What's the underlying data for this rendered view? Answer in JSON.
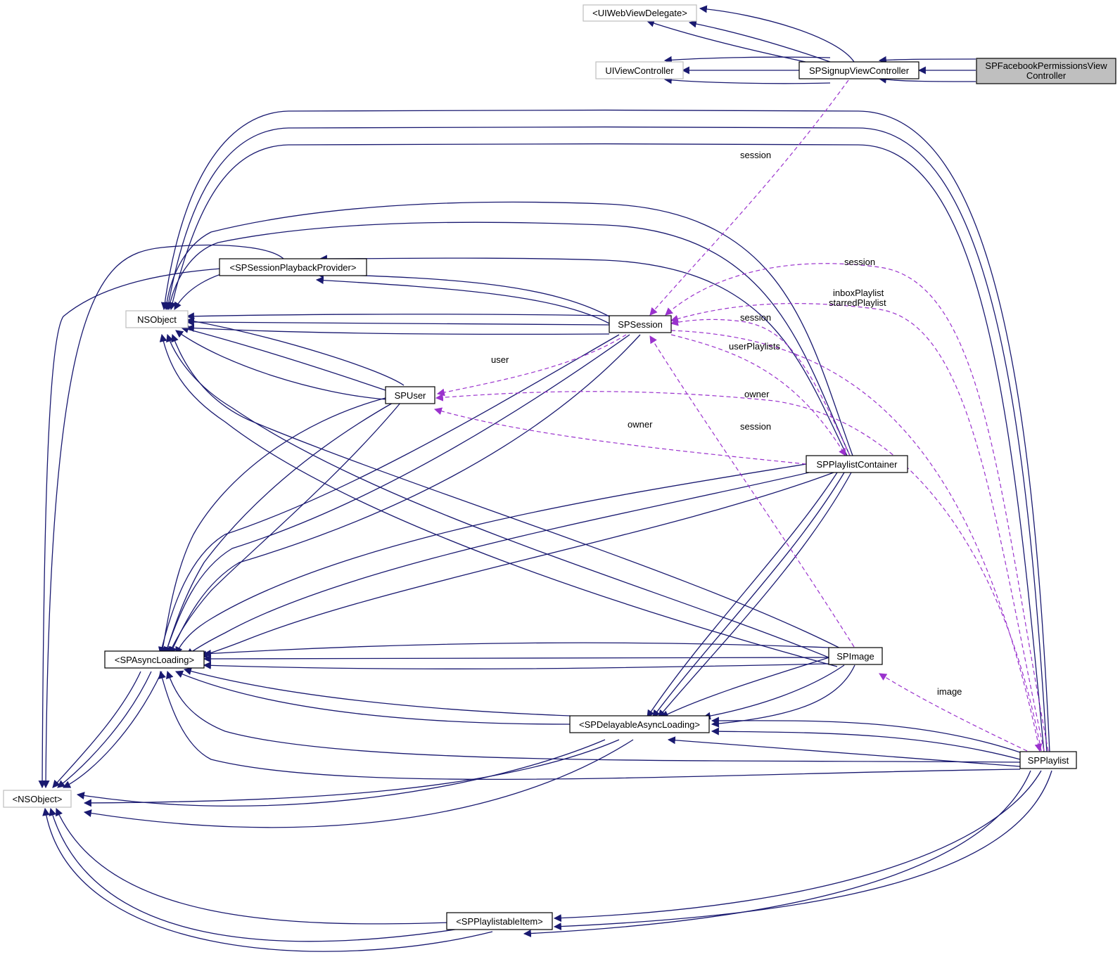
{
  "colors": {
    "inheritance": "#191970",
    "usage": "#9a32cd",
    "normal_border": "#000000",
    "external_border": "#bfbfbf",
    "focus_fill": "#bfbfbf",
    "node_fill": "#ffffff"
  },
  "nodes": [
    {
      "id": "uiwebviewdelegate",
      "label": "<UIWebViewDelegate>",
      "style": "external"
    },
    {
      "id": "uiviewcontroller",
      "label": "UIViewController",
      "style": "external"
    },
    {
      "id": "spsignup",
      "label": "SPSignupViewController",
      "style": "normal"
    },
    {
      "id": "spfacebook",
      "label": [
        "SPFacebookPermissionsView",
        "Controller"
      ],
      "style": "focus"
    },
    {
      "id": "spsessionplayback",
      "label": "<SPSessionPlaybackProvider>",
      "style": "normal"
    },
    {
      "id": "nsobject_class",
      "label": "NSObject",
      "style": "external"
    },
    {
      "id": "spsession",
      "label": "SPSession",
      "style": "normal"
    },
    {
      "id": "spuser",
      "label": "SPUser",
      "style": "normal"
    },
    {
      "id": "spplaylistcontainer",
      "label": "SPPlaylistContainer",
      "style": "normal"
    },
    {
      "id": "spasync",
      "label": "<SPAsyncLoading>",
      "style": "normal"
    },
    {
      "id": "spimage",
      "label": "SPImage",
      "style": "normal"
    },
    {
      "id": "spdelayable",
      "label": "<SPDelayableAsyncLoading>",
      "style": "normal"
    },
    {
      "id": "spplaylist",
      "label": "SPPlaylist",
      "style": "normal"
    },
    {
      "id": "nsobject_proto",
      "label": "<NSObject>",
      "style": "external"
    },
    {
      "id": "spplaylistable",
      "label": "<SPPlaylistableItem>",
      "style": "normal"
    }
  ],
  "edge_labels": [
    {
      "id": "lbl-session-signup",
      "text": "session"
    },
    {
      "id": "lbl-session-playlist",
      "text": "session"
    },
    {
      "id": "lbl-inbox",
      "text": "inboxPlaylist"
    },
    {
      "id": "lbl-starred",
      "text": "starredPlaylist"
    },
    {
      "id": "lbl-session-container",
      "text": "session"
    },
    {
      "id": "lbl-userplaylists",
      "text": "userPlaylists"
    },
    {
      "id": "lbl-user",
      "text": "user"
    },
    {
      "id": "lbl-owner-playlist",
      "text": "owner"
    },
    {
      "id": "lbl-owner-container",
      "text": "owner"
    },
    {
      "id": "lbl-session-image",
      "text": "session"
    },
    {
      "id": "lbl-image",
      "text": "image"
    }
  ]
}
